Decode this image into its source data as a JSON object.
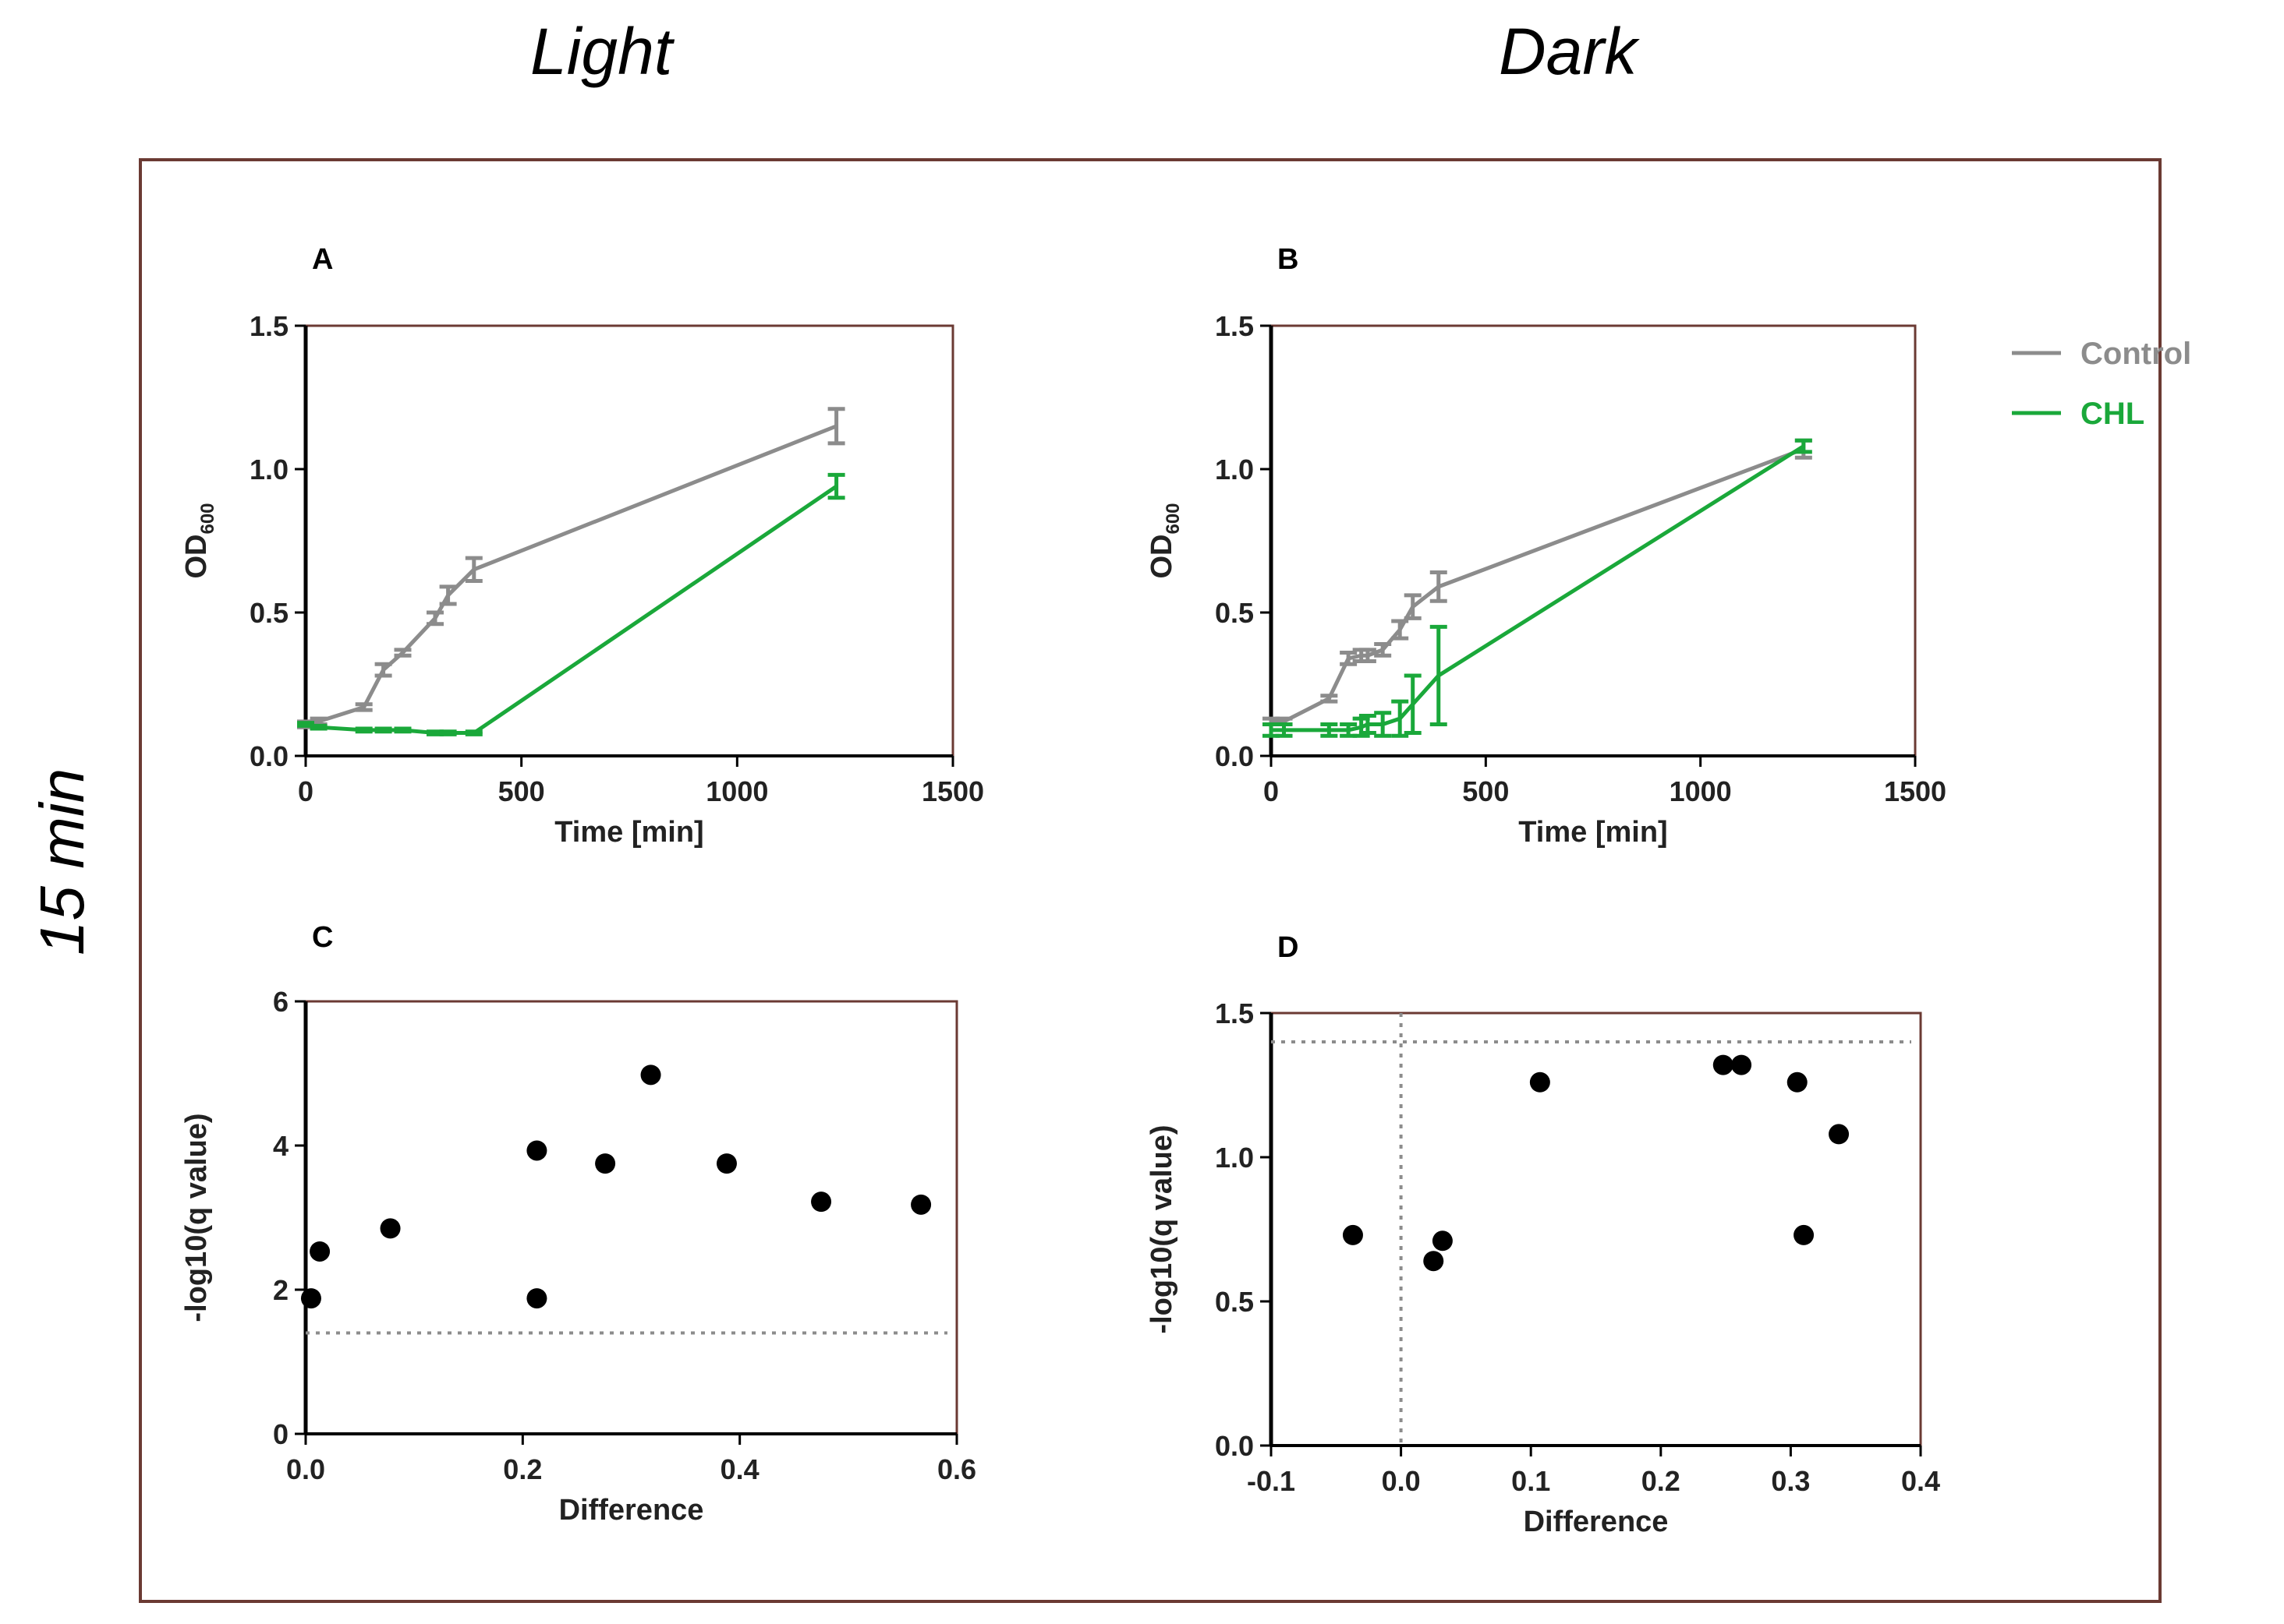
{
  "column_titles": {
    "light": "Light",
    "dark": "Dark"
  },
  "row_title": "15 min",
  "colors": {
    "control": "#8c8c8c",
    "chl": "#1aa83a",
    "frame": "#6b3a33",
    "axis": "#000000",
    "point": "#000000",
    "threshold": "#8c8c8c"
  },
  "legend": {
    "control": "Control",
    "chl": "CHL"
  },
  "chart_data": [
    {
      "id": "A",
      "panel_label": "A",
      "type": "line",
      "xlabel": "Time [min]",
      "ylabel": "OD",
      "ylabel_sub": "600",
      "xlim": [
        0,
        1500
      ],
      "ylim": [
        0,
        1.5
      ],
      "xticks": [
        0,
        500,
        1000,
        1500
      ],
      "xtick_labels": [
        "0",
        "500",
        "1000",
        "1500"
      ],
      "yticks": [
        0,
        0.5,
        1.0,
        1.5
      ],
      "ytick_labels": [
        "0.0",
        "0.5",
        "1.0",
        "1.5"
      ],
      "series": [
        {
          "name": "Control",
          "color_key": "control",
          "x": [
            0,
            30,
            135,
            180,
            225,
            300,
            330,
            390,
            1230
          ],
          "y": [
            0.11,
            0.12,
            0.17,
            0.3,
            0.36,
            0.48,
            0.56,
            0.65,
            1.15
          ],
          "err": [
            0.01,
            0.01,
            0.01,
            0.02,
            0.01,
            0.02,
            0.03,
            0.04,
            0.06
          ]
        },
        {
          "name": "CHL",
          "color_key": "chl",
          "x": [
            0,
            30,
            135,
            180,
            225,
            300,
            330,
            390,
            1230
          ],
          "y": [
            0.11,
            0.1,
            0.09,
            0.09,
            0.09,
            0.08,
            0.08,
            0.08,
            0.94
          ],
          "err": [
            0.005,
            0.005,
            0.005,
            0.005,
            0.005,
            0.005,
            0.005,
            0.005,
            0.04
          ]
        }
      ]
    },
    {
      "id": "B",
      "panel_label": "B",
      "type": "line",
      "xlabel": "Time [min]",
      "ylabel": "OD",
      "ylabel_sub": "600",
      "xlim": [
        0,
        1500
      ],
      "ylim": [
        0,
        1.5
      ],
      "xticks": [
        0,
        500,
        1000,
        1500
      ],
      "xtick_labels": [
        "0",
        "500",
        "1000",
        "1500"
      ],
      "yticks": [
        0,
        0.5,
        1.0,
        1.5
      ],
      "ytick_labels": [
        "0.0",
        "0.5",
        "1.0",
        "1.5"
      ],
      "series": [
        {
          "name": "Control",
          "color_key": "control",
          "x": [
            0,
            30,
            135,
            180,
            210,
            225,
            260,
            300,
            330,
            390,
            1240
          ],
          "y": [
            0.12,
            0.12,
            0.2,
            0.34,
            0.35,
            0.35,
            0.37,
            0.44,
            0.52,
            0.59,
            1.07
          ],
          "err": [
            0.01,
            0.01,
            0.01,
            0.02,
            0.02,
            0.02,
            0.02,
            0.03,
            0.04,
            0.05,
            0.03
          ]
        },
        {
          "name": "CHL",
          "color_key": "chl",
          "x": [
            0,
            30,
            135,
            180,
            210,
            225,
            260,
            300,
            330,
            390,
            1240
          ],
          "y": [
            0.09,
            0.09,
            0.09,
            0.09,
            0.1,
            0.11,
            0.11,
            0.13,
            0.18,
            0.28,
            1.08
          ],
          "err": [
            0.02,
            0.02,
            0.02,
            0.02,
            0.03,
            0.03,
            0.04,
            0.06,
            0.1,
            0.17,
            0.02
          ]
        }
      ]
    },
    {
      "id": "C",
      "panel_label": "C",
      "type": "scatter",
      "xlabel": "Difference",
      "ylabel": "-log10(q value)",
      "xlim": [
        0,
        0.6
      ],
      "ylim": [
        0,
        6
      ],
      "xticks": [
        0,
        0.2,
        0.4,
        0.6
      ],
      "xtick_labels": [
        "0.0",
        "0.2",
        "0.4",
        "0.6"
      ],
      "yticks": [
        0,
        2,
        4,
        6
      ],
      "ytick_labels": [
        "0",
        "2",
        "4",
        "6"
      ],
      "hline": 1.4,
      "points": [
        {
          "x": 0.005,
          "y": 1.88
        },
        {
          "x": 0.013,
          "y": 2.53
        },
        {
          "x": 0.078,
          "y": 2.85
        },
        {
          "x": 0.213,
          "y": 3.93
        },
        {
          "x": 0.213,
          "y": 1.88
        },
        {
          "x": 0.276,
          "y": 3.75
        },
        {
          "x": 0.318,
          "y": 4.98
        },
        {
          "x": 0.388,
          "y": 3.75
        },
        {
          "x": 0.475,
          "y": 3.22
        },
        {
          "x": 0.567,
          "y": 3.18
        }
      ]
    },
    {
      "id": "D",
      "panel_label": "D",
      "type": "scatter",
      "xlabel": "Difference",
      "ylabel": "-log10(q value)",
      "xlim": [
        -0.1,
        0.4
      ],
      "ylim": [
        0,
        1.5
      ],
      "xticks": [
        -0.1,
        0,
        0.1,
        0.2,
        0.3,
        0.4
      ],
      "xtick_labels": [
        "-0.1",
        "0.0",
        "0.1",
        "0.2",
        "0.3",
        "0.4"
      ],
      "yticks": [
        0,
        0.5,
        1.0,
        1.5
      ],
      "ytick_labels": [
        "0.0",
        "0.5",
        "1.0",
        "1.5"
      ],
      "hline": 1.4,
      "vline": 0,
      "points": [
        {
          "x": -0.037,
          "y": 0.73
        },
        {
          "x": 0.025,
          "y": 0.64
        },
        {
          "x": 0.032,
          "y": 0.71
        },
        {
          "x": 0.107,
          "y": 1.26
        },
        {
          "x": 0.248,
          "y": 1.32
        },
        {
          "x": 0.262,
          "y": 1.32
        },
        {
          "x": 0.305,
          "y": 1.26
        },
        {
          "x": 0.31,
          "y": 0.73
        },
        {
          "x": 0.337,
          "y": 1.08
        }
      ]
    }
  ]
}
